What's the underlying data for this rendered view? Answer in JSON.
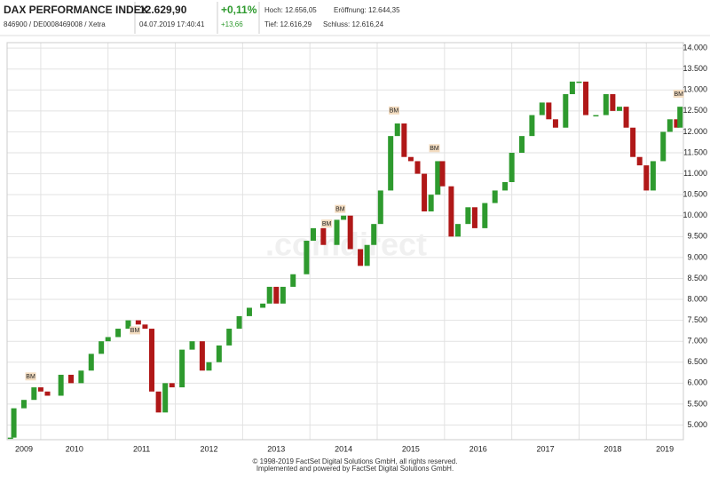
{
  "header": {
    "name": "DAX PERFORMANCE INDEX",
    "ids": "846900 / DE0008469008 / Xetra",
    "price": "12.629,90",
    "timestamp": "04.07.2019 17:40:41",
    "change_pct": "+0,11%",
    "change_abs": "+13,66",
    "high": "Hoch: 12.656,05",
    "open": "Eröffnung: 12.644,35",
    "low": "Tief: 12.616,29",
    "close": "Schluss: 12.616,24"
  },
  "chart_data": {
    "type": "candlestick",
    "watermark": ".comdirect",
    "up_color": "#2e9a2e",
    "down_color": "#b01818",
    "xlim": [
      2009.5,
      2019.55
    ],
    "xticks": [
      2009,
      2010,
      2011,
      2012,
      2013,
      2014,
      2015,
      2016,
      2017,
      2018,
      2019
    ],
    "ylim": [
      4650,
      14130
    ],
    "yticks": [
      {
        "value": 5000,
        "label": "5.000"
      },
      {
        "value": 5500,
        "label": "5.500"
      },
      {
        "value": 6000,
        "label": "6.000"
      },
      {
        "value": 6500,
        "label": "6.500"
      },
      {
        "value": 7000,
        "label": "7.000"
      },
      {
        "value": 7500,
        "label": "7.500"
      },
      {
        "value": 8000,
        "label": "8.000"
      },
      {
        "value": 8500,
        "label": "8.500"
      },
      {
        "value": 9000,
        "label": "9.000"
      },
      {
        "value": 9500,
        "label": "9.500"
      },
      {
        "value": 10000,
        "label": "10.000"
      },
      {
        "value": 10500,
        "label": "10.500"
      },
      {
        "value": 11000,
        "label": "11.000"
      },
      {
        "value": 11500,
        "label": "11.500"
      },
      {
        "value": 12000,
        "label": "12.000"
      },
      {
        "value": 12500,
        "label": "12.500"
      },
      {
        "value": 13000,
        "label": "13.000"
      },
      {
        "value": 13500,
        "label": "13.500"
      },
      {
        "value": 14000,
        "label": "14.000"
      }
    ],
    "grid": true,
    "x": [
      2009.55,
      2009.6,
      2009.75,
      2009.9,
      2010.0,
      2010.1,
      2010.3,
      2010.45,
      2010.6,
      2010.75,
      2010.9,
      2011.0,
      2011.15,
      2011.3,
      2011.45,
      2011.55,
      2011.65,
      2011.75,
      2011.85,
      2011.95,
      2012.1,
      2012.25,
      2012.4,
      2012.5,
      2012.65,
      2012.8,
      2012.95,
      2013.1,
      2013.3,
      2013.4,
      2013.5,
      2013.6,
      2013.75,
      2013.95,
      2014.05,
      2014.2,
      2014.4,
      2014.5,
      2014.6,
      2014.75,
      2014.85,
      2014.95,
      2015.05,
      2015.2,
      2015.3,
      2015.4,
      2015.5,
      2015.6,
      2015.7,
      2015.8,
      2015.9,
      2015.97,
      2016.1,
      2016.2,
      2016.35,
      2016.45,
      2016.6,
      2016.75,
      2016.9,
      2017.0,
      2017.15,
      2017.3,
      2017.45,
      2017.55,
      2017.65,
      2017.8,
      2017.9,
      2018.0,
      2018.1,
      2018.25,
      2018.4,
      2018.5,
      2018.6,
      2018.7,
      2018.8,
      2018.9,
      2019.0,
      2019.1,
      2019.25,
      2019.35,
      2019.45,
      2019.5
    ],
    "open": [
      4700,
      4700,
      5400,
      5600,
      5900,
      5800,
      5700,
      6200,
      6000,
      6300,
      6700,
      7000,
      7100,
      7300,
      7500,
      7400,
      7300,
      5800,
      5300,
      6000,
      5900,
      6800,
      7000,
      6300,
      6500,
      6900,
      7300,
      7600,
      7800,
      7900,
      8300,
      7900,
      8300,
      8600,
      9400,
      9700,
      9300,
      9900,
      10000,
      9200,
      8800,
      9300,
      9800,
      10600,
      11900,
      12200,
      11400,
      11300,
      11000,
      10100,
      10500,
      11300,
      10700,
      9500,
      9800,
      10200,
      9700,
      10300,
      10600,
      10800,
      11500,
      11900,
      12400,
      12700,
      12300,
      12100,
      12900,
      13200,
      13200,
      12400,
      12400,
      12900,
      12500,
      12600,
      12100,
      11400,
      11200,
      10600,
      11300,
      12000,
      12300,
      12100
    ],
    "close": [
      4700,
      5400,
      5600,
      5900,
      5800,
      5700,
      6200,
      6000,
      6300,
      6700,
      7000,
      7100,
      7300,
      7500,
      7400,
      7300,
      5800,
      5300,
      6000,
      5900,
      6800,
      7000,
      6300,
      6500,
      6900,
      7300,
      7600,
      7800,
      7900,
      8300,
      7900,
      8300,
      8600,
      9400,
      9700,
      9300,
      9900,
      10000,
      9200,
      8800,
      9300,
      9800,
      10600,
      11900,
      12200,
      11400,
      11300,
      11000,
      10100,
      10500,
      11300,
      10700,
      9500,
      9800,
      10200,
      9700,
      10300,
      10600,
      10800,
      11500,
      11900,
      12400,
      12700,
      12300,
      12100,
      12900,
      13200,
      13200,
      12400,
      12400,
      12900,
      12500,
      12600,
      12100,
      11400,
      11200,
      10600,
      11300,
      12000,
      12300,
      12100,
      12600
    ],
    "annotations": [
      {
        "x": 2009.85,
        "y": 6150,
        "text": "BM"
      },
      {
        "x": 2011.4,
        "y": 7250,
        "text": "BM"
      },
      {
        "x": 2014.25,
        "y": 9800,
        "text": "BM"
      },
      {
        "x": 2014.45,
        "y": 10150,
        "text": "BM"
      },
      {
        "x": 2015.25,
        "y": 12500,
        "text": "BM"
      },
      {
        "x": 2015.85,
        "y": 11600,
        "text": "BM"
      },
      {
        "x": 2019.48,
        "y": 12900,
        "text": "BM"
      }
    ]
  },
  "footer": {
    "copyright": "© 1998-2019 FactSet Digital Solutions GmbH, all rights reserved.",
    "powered": "Implemented and powered by FactSet Digital Solutions GmbH."
  }
}
